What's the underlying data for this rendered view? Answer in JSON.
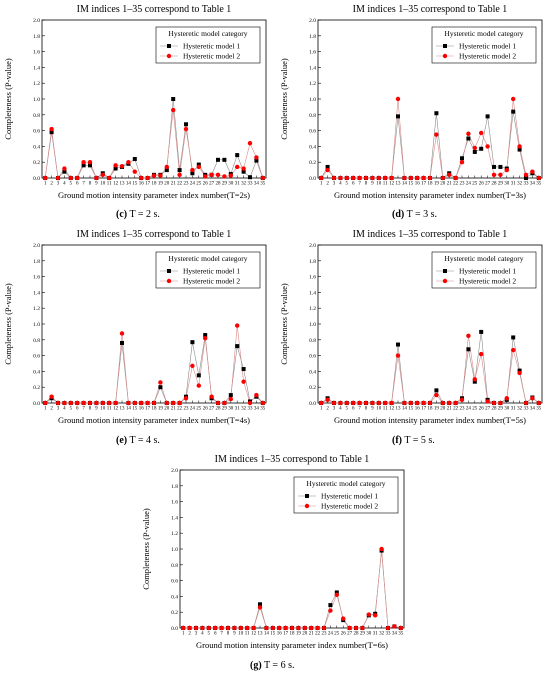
{
  "figure": {
    "captions": [
      {
        "letter": "(c)",
        "text": "T = 2 s."
      },
      {
        "letter": "(d)",
        "text": "T = 3 s."
      },
      {
        "letter": "(e)",
        "text": "T = 4 s."
      },
      {
        "letter": "(f)",
        "text": "T = 5 s."
      },
      {
        "letter": "(g)",
        "text": "T = 6 s."
      }
    ]
  },
  "colors": {
    "model1": "#000000",
    "model2": "#ff0000",
    "line": "#d98b8b"
  },
  "chart_data": [
    {
      "type": "line",
      "title": "IM indices 1–35 correspond to Table 1",
      "xlabel": "Ground motion intensity parameter index number(T=2s)",
      "ylabel": "Completeness (P-value)",
      "legend_title": "Hysteretic model category",
      "legend_position": "top-right",
      "ylim": [
        0,
        2.0
      ],
      "yticks": [
        0,
        0.2,
        0.4,
        0.6,
        0.8,
        1.0,
        1.2,
        1.4,
        1.6,
        1.8,
        2.0
      ],
      "x": [
        1,
        2,
        3,
        4,
        5,
        6,
        7,
        8,
        9,
        10,
        11,
        12,
        13,
        14,
        15,
        16,
        17,
        18,
        19,
        20,
        21,
        22,
        23,
        24,
        25,
        26,
        27,
        28,
        29,
        30,
        31,
        32,
        33,
        34,
        35
      ],
      "series": [
        {
          "name": "Hysteretic model 1",
          "marker": "square",
          "values": [
            0,
            0.58,
            0,
            0.08,
            0,
            0,
            0.16,
            0.16,
            0,
            0.06,
            0,
            0.12,
            0.14,
            0.18,
            0.24,
            0,
            0,
            0.04,
            0.04,
            0.1,
            1.0,
            0.1,
            0.68,
            0.06,
            0.17,
            0.04,
            0.04,
            0.23,
            0.23,
            0.05,
            0.29,
            0.08,
            0.01,
            0.22,
            0
          ]
        },
        {
          "name": "Hysteretic model 2",
          "marker": "circle",
          "values": [
            0,
            0.62,
            0,
            0.12,
            0,
            0,
            0.2,
            0.2,
            0,
            0.04,
            0,
            0.16,
            0.15,
            0.2,
            0.08,
            0,
            0,
            0.03,
            0.03,
            0.14,
            0.86,
            0.04,
            0.62,
            0.1,
            0.14,
            0.02,
            0.04,
            0.04,
            0.02,
            0.03,
            0.14,
            0.12,
            0.44,
            0.26,
            0
          ]
        }
      ]
    },
    {
      "type": "line",
      "title": "IM indices 1–35 correspond to Table 1",
      "xlabel": "Ground motion intensity parameter index number(T=3s)",
      "ylabel": "Completeness (P-value)",
      "legend_title": "Hysteretic model category",
      "legend_position": "top-right",
      "ylim": [
        0,
        2.0
      ],
      "yticks": [
        0,
        0.2,
        0.4,
        0.6,
        0.8,
        1.0,
        1.2,
        1.4,
        1.6,
        1.8,
        2.0
      ],
      "x": [
        1,
        2,
        3,
        4,
        5,
        6,
        7,
        8,
        9,
        10,
        11,
        12,
        13,
        14,
        15,
        16,
        17,
        18,
        19,
        20,
        21,
        22,
        23,
        24,
        25,
        26,
        27,
        28,
        29,
        30,
        31,
        32,
        33,
        34,
        35
      ],
      "series": [
        {
          "name": "Hysteretic model 1",
          "marker": "square",
          "values": [
            0,
            0.14,
            0,
            0,
            0,
            0,
            0,
            0,
            0,
            0,
            0,
            0,
            0.78,
            0,
            0,
            0,
            0,
            0,
            0.82,
            0,
            0.06,
            0,
            0.25,
            0.5,
            0.33,
            0.37,
            0.78,
            0.14,
            0.14,
            0.12,
            0.84,
            0.36,
            0,
            0.06,
            0
          ]
        },
        {
          "name": "Hysteretic model 2",
          "marker": "circle",
          "values": [
            0,
            0.1,
            0,
            0,
            0,
            0,
            0,
            0,
            0,
            0,
            0,
            0,
            1.0,
            0,
            0,
            0,
            0,
            0,
            0.55,
            0,
            0.04,
            0,
            0.2,
            0.56,
            0.38,
            0.57,
            0.4,
            0.04,
            0.04,
            0.1,
            1.0,
            0.4,
            0.04,
            0.08,
            0
          ]
        }
      ]
    },
    {
      "type": "line",
      "title": "IM indices 1–35 correspond to Table 1",
      "xlabel": "Ground motion intensity parameter index number(T=4s)",
      "ylabel": "Completeness (P-value)",
      "legend_title": "Hysteretic model category",
      "legend_position": "top-right",
      "ylim": [
        0,
        2.0
      ],
      "yticks": [
        0,
        0.2,
        0.4,
        0.6,
        0.8,
        1.0,
        1.2,
        1.4,
        1.6,
        1.8,
        2.0
      ],
      "x": [
        1,
        2,
        3,
        4,
        5,
        6,
        7,
        8,
        9,
        10,
        11,
        12,
        13,
        14,
        15,
        16,
        17,
        18,
        19,
        20,
        21,
        22,
        23,
        24,
        25,
        26,
        27,
        28,
        29,
        30,
        31,
        32,
        33,
        34,
        35
      ],
      "series": [
        {
          "name": "Hysteretic model 1",
          "marker": "square",
          "values": [
            0,
            0.06,
            0,
            0,
            0,
            0,
            0,
            0,
            0,
            0,
            0,
            0,
            0.76,
            0,
            0,
            0,
            0,
            0,
            0.2,
            0,
            0,
            0,
            0.08,
            0.77,
            0.35,
            0.86,
            0.06,
            0,
            0,
            0.1,
            0.72,
            0.43,
            0.02,
            0.08,
            0
          ]
        },
        {
          "name": "Hysteretic model 2",
          "marker": "circle",
          "values": [
            0,
            0.08,
            0,
            0,
            0,
            0,
            0,
            0,
            0,
            0,
            0,
            0,
            0.88,
            0,
            0,
            0,
            0,
            0,
            0.26,
            0,
            0,
            0,
            0.06,
            0.47,
            0.22,
            0.82,
            0.08,
            0,
            0,
            0.05,
            0.98,
            0.27,
            0,
            0.1,
            0
          ]
        }
      ]
    },
    {
      "type": "line",
      "title": "IM indices 1–35 correspond to Table 1",
      "xlabel": "Ground motion intensity parameter index number(T=5s)",
      "ylabel": "Completeness (P-value)",
      "legend_title": "Hysteretic model category",
      "legend_position": "top-right",
      "ylim": [
        0,
        2.0
      ],
      "yticks": [
        0,
        0.2,
        0.4,
        0.6,
        0.8,
        1.0,
        1.2,
        1.4,
        1.6,
        1.8,
        2.0
      ],
      "x": [
        1,
        2,
        3,
        4,
        5,
        6,
        7,
        8,
        9,
        10,
        11,
        12,
        13,
        14,
        15,
        16,
        17,
        18,
        19,
        20,
        21,
        22,
        23,
        24,
        25,
        26,
        27,
        28,
        29,
        30,
        31,
        32,
        33,
        34,
        35
      ],
      "series": [
        {
          "name": "Hysteretic model 1",
          "marker": "square",
          "values": [
            0,
            0.06,
            0,
            0,
            0,
            0,
            0,
            0,
            0,
            0,
            0,
            0,
            0.74,
            0,
            0,
            0,
            0,
            0,
            0.16,
            0,
            0,
            0,
            0.06,
            0.68,
            0.27,
            0.9,
            0.04,
            0,
            0,
            0.04,
            0.83,
            0.41,
            0,
            0.07,
            0
          ]
        },
        {
          "name": "Hysteretic model 2",
          "marker": "circle",
          "values": [
            0,
            0.04,
            0,
            0,
            0,
            0,
            0,
            0,
            0,
            0,
            0,
            0,
            0.6,
            0,
            0,
            0,
            0,
            0,
            0.1,
            0,
            0,
            0,
            0.04,
            0.85,
            0.3,
            0.62,
            0.02,
            0,
            0,
            0.06,
            0.67,
            0.38,
            0,
            0.06,
            0
          ]
        }
      ]
    },
    {
      "type": "line",
      "title": "IM indices 1–35 correspond to Table 1",
      "xlabel": "Ground motion intensity parameter index number(T=6s)",
      "ylabel": "Completeness (P-value)",
      "legend_title": "Hysteretic model category",
      "legend_position": "top-right",
      "ylim": [
        0,
        2.0
      ],
      "yticks": [
        0,
        0.2,
        0.4,
        0.6,
        0.8,
        1.0,
        1.2,
        1.4,
        1.6,
        1.8,
        2.0
      ],
      "x": [
        1,
        2,
        3,
        4,
        5,
        6,
        7,
        8,
        9,
        10,
        11,
        12,
        13,
        14,
        15,
        16,
        17,
        18,
        19,
        20,
        21,
        22,
        23,
        24,
        25,
        26,
        27,
        28,
        29,
        30,
        31,
        32,
        33,
        34,
        35
      ],
      "series": [
        {
          "name": "Hysteretic model 1",
          "marker": "square",
          "values": [
            0,
            0,
            0,
            0,
            0,
            0,
            0,
            0,
            0,
            0,
            0,
            0,
            0.3,
            0,
            0,
            0,
            0,
            0,
            0,
            0,
            0,
            0,
            0,
            0.29,
            0.45,
            0.1,
            0,
            0,
            0,
            0.16,
            0.18,
            0.98,
            0,
            0.02,
            0
          ]
        },
        {
          "name": "Hysteretic model 2",
          "marker": "circle",
          "values": [
            0,
            0,
            0,
            0,
            0,
            0,
            0,
            0,
            0,
            0,
            0,
            0,
            0.26,
            0,
            0,
            0,
            0,
            0,
            0,
            0,
            0,
            0,
            0,
            0.22,
            0.42,
            0.12,
            0,
            0,
            0,
            0.17,
            0.16,
            1.0,
            0,
            0.02,
            0
          ]
        }
      ]
    }
  ]
}
